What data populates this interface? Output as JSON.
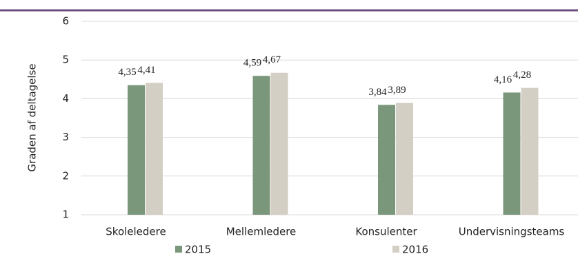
{
  "chart_data": {
    "type": "bar",
    "y_label": "Graden af deltagelse",
    "categories": [
      "Skoleledere",
      "Mellemledere",
      "Konsulenter",
      "Undervisningsteams"
    ],
    "series": [
      {
        "name": "2015",
        "color": "#7b977b",
        "values": [
          4.35,
          4.59,
          3.84,
          4.16
        ],
        "value_labels": [
          "4,35",
          "4,59",
          "3,84",
          "4,16"
        ]
      },
      {
        "name": "2016",
        "color": "#d4cfc4",
        "values": [
          4.41,
          4.67,
          3.89,
          4.28
        ],
        "value_labels": [
          "4,41",
          "4,67",
          "3,89",
          "4,28"
        ]
      }
    ],
    "ylim": [
      1,
      6
    ],
    "yticks": [
      1,
      2,
      3,
      4,
      5,
      6
    ],
    "grid": true
  }
}
